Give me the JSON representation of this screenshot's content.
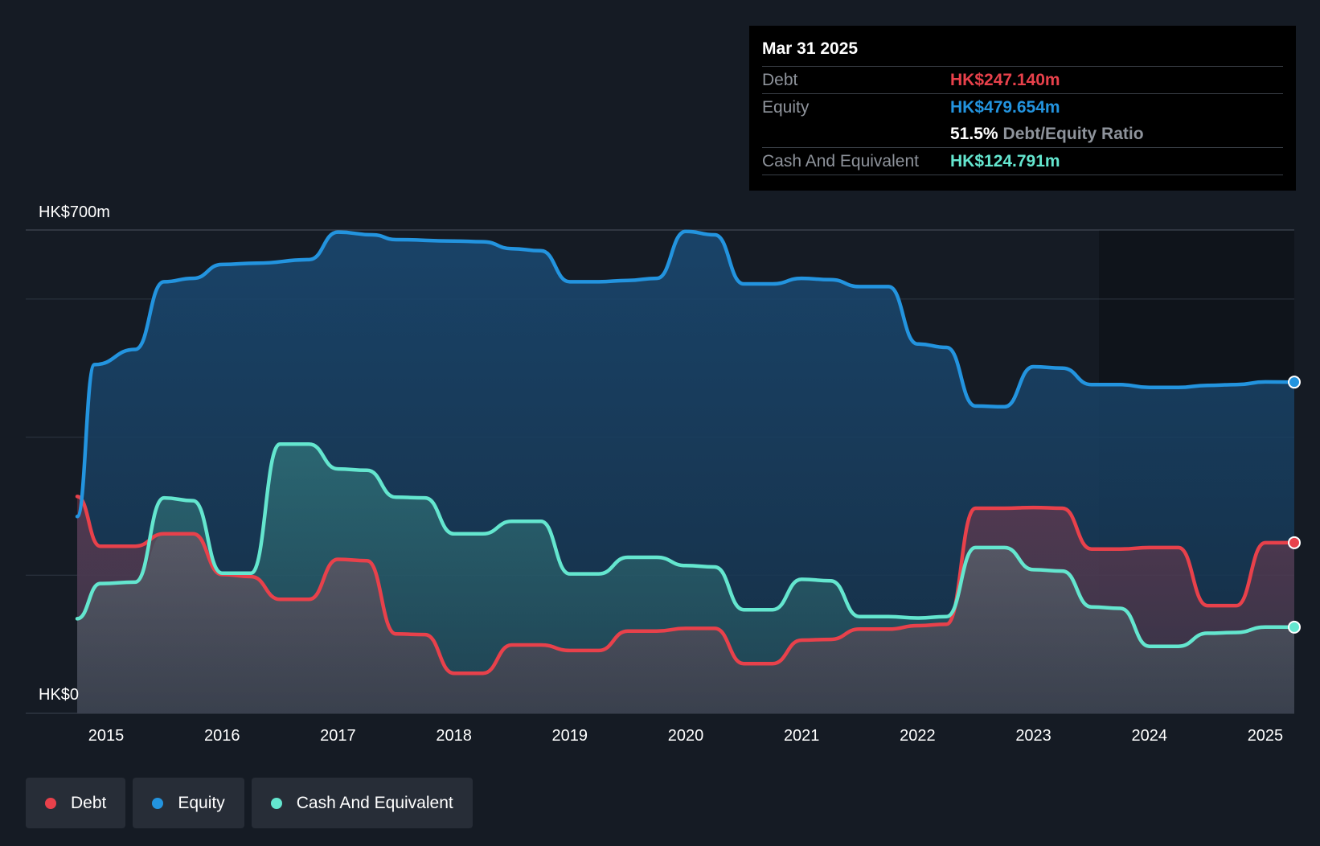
{
  "chart_data": {
    "type": "area",
    "currency_prefix": "HK$",
    "y_top_label": "HK$700m",
    "y_bottom_label": "HK$0",
    "ylim": [
      0,
      700
    ],
    "xlim": [
      2014.75,
      2025.25
    ],
    "x_ticks": [
      "2015",
      "2016",
      "2017",
      "2018",
      "2019",
      "2020",
      "2021",
      "2022",
      "2023",
      "2024",
      "2025"
    ],
    "series": [
      {
        "name": "Equity",
        "color": "#2394df",
        "points": [
          [
            2014.75,
            285
          ],
          [
            2014.9,
            505
          ],
          [
            2015.25,
            527
          ],
          [
            2015.5,
            625
          ],
          [
            2015.75,
            630
          ],
          [
            2016.0,
            650
          ],
          [
            2016.3,
            652
          ],
          [
            2016.75,
            657
          ],
          [
            2017.0,
            697
          ],
          [
            2017.3,
            693
          ],
          [
            2017.5,
            686
          ],
          [
            2018.0,
            684
          ],
          [
            2018.25,
            683
          ],
          [
            2018.5,
            673
          ],
          [
            2018.75,
            670
          ],
          [
            2019.0,
            625
          ],
          [
            2019.25,
            625
          ],
          [
            2019.5,
            627
          ],
          [
            2019.75,
            630
          ],
          [
            2020.0,
            698
          ],
          [
            2020.25,
            693
          ],
          [
            2020.5,
            622
          ],
          [
            2020.75,
            622
          ],
          [
            2021.0,
            630
          ],
          [
            2021.25,
            628
          ],
          [
            2021.5,
            618
          ],
          [
            2021.75,
            618
          ],
          [
            2022.0,
            535
          ],
          [
            2022.25,
            530
          ],
          [
            2022.5,
            445
          ],
          [
            2022.75,
            444
          ],
          [
            2023.0,
            502
          ],
          [
            2023.25,
            500
          ],
          [
            2023.5,
            476
          ],
          [
            2023.75,
            476
          ],
          [
            2024.0,
            472
          ],
          [
            2024.25,
            472
          ],
          [
            2024.5,
            475
          ],
          [
            2024.75,
            476
          ],
          [
            2025.0,
            480
          ],
          [
            2025.25,
            479.654
          ]
        ]
      },
      {
        "name": "Cash And Equivalent",
        "color": "#64e6cf",
        "points": [
          [
            2014.75,
            137
          ],
          [
            2014.95,
            188
          ],
          [
            2015.25,
            190
          ],
          [
            2015.5,
            312
          ],
          [
            2015.75,
            308
          ],
          [
            2016.0,
            203
          ],
          [
            2016.25,
            203
          ],
          [
            2016.5,
            390
          ],
          [
            2016.75,
            390
          ],
          [
            2017.0,
            354
          ],
          [
            2017.25,
            352
          ],
          [
            2017.5,
            313
          ],
          [
            2017.75,
            312
          ],
          [
            2018.0,
            260
          ],
          [
            2018.25,
            260
          ],
          [
            2018.5,
            278
          ],
          [
            2018.75,
            278
          ],
          [
            2019.0,
            202
          ],
          [
            2019.25,
            202
          ],
          [
            2019.5,
            226
          ],
          [
            2019.75,
            226
          ],
          [
            2020.0,
            214
          ],
          [
            2020.25,
            212
          ],
          [
            2020.5,
            150
          ],
          [
            2020.75,
            150
          ],
          [
            2021.0,
            194
          ],
          [
            2021.25,
            192
          ],
          [
            2021.5,
            140
          ],
          [
            2021.75,
            140
          ],
          [
            2022.0,
            138
          ],
          [
            2022.25,
            140
          ],
          [
            2022.5,
            240
          ],
          [
            2022.75,
            240
          ],
          [
            2023.0,
            208
          ],
          [
            2023.25,
            206
          ],
          [
            2023.5,
            154
          ],
          [
            2023.75,
            152
          ],
          [
            2024.0,
            97
          ],
          [
            2024.25,
            97
          ],
          [
            2024.5,
            116
          ],
          [
            2024.75,
            117
          ],
          [
            2025.0,
            125
          ],
          [
            2025.25,
            124.791
          ]
        ]
      },
      {
        "name": "Debt",
        "color": "#e8414b",
        "points": [
          [
            2014.75,
            314
          ],
          [
            2014.95,
            242
          ],
          [
            2015.25,
            242
          ],
          [
            2015.5,
            260
          ],
          [
            2015.75,
            260
          ],
          [
            2016.0,
            201
          ],
          [
            2016.25,
            198
          ],
          [
            2016.5,
            165
          ],
          [
            2016.75,
            165
          ],
          [
            2017.0,
            223
          ],
          [
            2017.25,
            221
          ],
          [
            2017.5,
            115
          ],
          [
            2017.75,
            114
          ],
          [
            2018.0,
            58
          ],
          [
            2018.25,
            58
          ],
          [
            2018.5,
            99
          ],
          [
            2018.75,
            99
          ],
          [
            2019.0,
            91
          ],
          [
            2019.25,
            91
          ],
          [
            2019.5,
            119
          ],
          [
            2019.75,
            119
          ],
          [
            2020.0,
            123
          ],
          [
            2020.25,
            123
          ],
          [
            2020.5,
            72
          ],
          [
            2020.75,
            72
          ],
          [
            2021.0,
            106
          ],
          [
            2021.25,
            107
          ],
          [
            2021.5,
            122
          ],
          [
            2021.75,
            122
          ],
          [
            2022.0,
            127
          ],
          [
            2022.25,
            129
          ],
          [
            2022.5,
            297
          ],
          [
            2022.75,
            297
          ],
          [
            2023.0,
            298
          ],
          [
            2023.25,
            297
          ],
          [
            2023.5,
            238
          ],
          [
            2023.75,
            238
          ],
          [
            2024.0,
            240
          ],
          [
            2024.25,
            240
          ],
          [
            2024.5,
            156
          ],
          [
            2024.75,
            156
          ],
          [
            2025.0,
            247
          ],
          [
            2025.25,
            247.14
          ]
        ]
      }
    ]
  },
  "tooltip": {
    "date": "Mar 31 2025",
    "debt_label": "Debt",
    "debt_value": "HK$247.140m",
    "equity_label": "Equity",
    "equity_value": "HK$479.654m",
    "ratio_value": "51.5%",
    "ratio_label": "Debt/Equity Ratio",
    "cash_label": "Cash And Equivalent",
    "cash_value": "HK$124.791m"
  },
  "legend": {
    "debt": "Debt",
    "equity": "Equity",
    "cash": "Cash And Equivalent"
  },
  "colors": {
    "debt": "#e8414b",
    "equity": "#2394df",
    "cash": "#64e6cf",
    "background": "#151b24",
    "plot_highlight": "#0f141b",
    "grid": "#2e3642"
  }
}
